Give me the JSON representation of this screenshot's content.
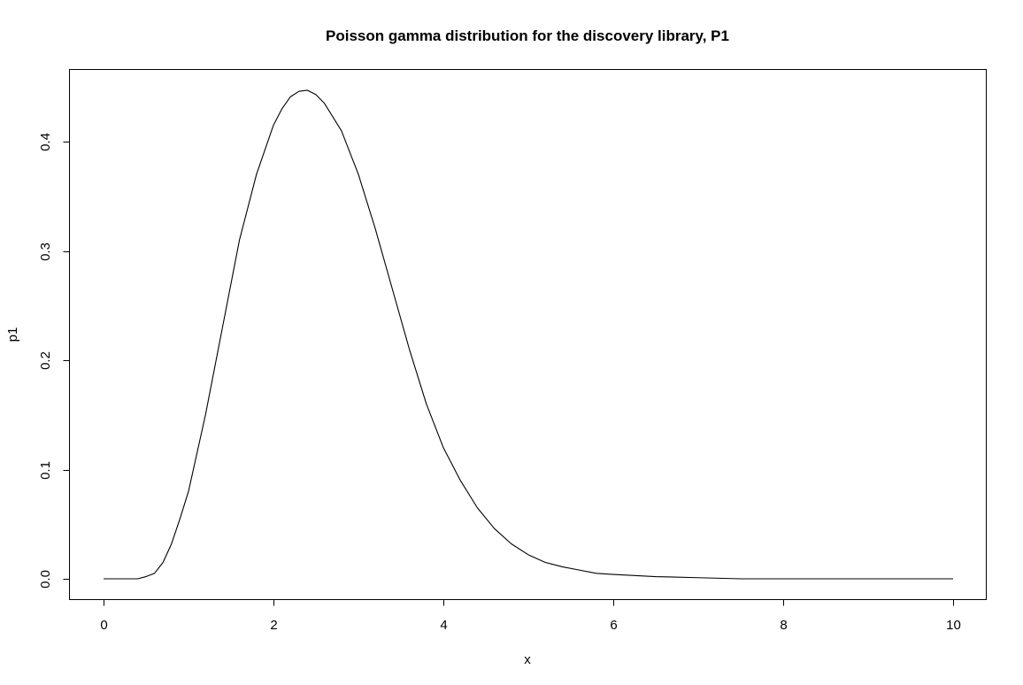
{
  "chart_data": {
    "type": "line",
    "title": "Poisson gamma distribution for the discovery library, P1",
    "xlabel": "x",
    "ylabel": "p1",
    "xlim": [
      0,
      10
    ],
    "ylim": [
      0,
      0.45
    ],
    "x_ticks": [
      0,
      2,
      4,
      6,
      8,
      10
    ],
    "y_ticks": [
      0.0,
      0.1,
      0.2,
      0.3,
      0.4
    ],
    "x_tick_labels": [
      "0",
      "2",
      "4",
      "6",
      "8",
      "10"
    ],
    "y_tick_labels": [
      "0.0",
      "0.1",
      "0.2",
      "0.3",
      "0.4"
    ],
    "grid": false,
    "line_color": "#000000",
    "series": [
      {
        "x": [
          0.0,
          0.2,
          0.4,
          0.5,
          0.6,
          0.7,
          0.8,
          0.9,
          1.0,
          1.2,
          1.4,
          1.6,
          1.8,
          2.0,
          2.1,
          2.2,
          2.3,
          2.4,
          2.5,
          2.6,
          2.8,
          3.0,
          3.2,
          3.4,
          3.6,
          3.8,
          4.0,
          4.2,
          4.4,
          4.6,
          4.8,
          5.0,
          5.2,
          5.4,
          5.6,
          5.8,
          6.0,
          6.5,
          7.0,
          7.5,
          8.0,
          9.0,
          10.0
        ],
        "y": [
          0.0,
          0.0,
          0.0,
          0.002,
          0.005,
          0.015,
          0.032,
          0.055,
          0.08,
          0.15,
          0.23,
          0.31,
          0.37,
          0.415,
          0.43,
          0.441,
          0.446,
          0.447,
          0.443,
          0.435,
          0.41,
          0.37,
          0.32,
          0.265,
          0.21,
          0.16,
          0.12,
          0.09,
          0.065,
          0.046,
          0.032,
          0.022,
          0.015,
          0.011,
          0.008,
          0.005,
          0.004,
          0.002,
          0.001,
          0.0,
          0.0,
          0.0,
          0.0
        ]
      }
    ]
  }
}
